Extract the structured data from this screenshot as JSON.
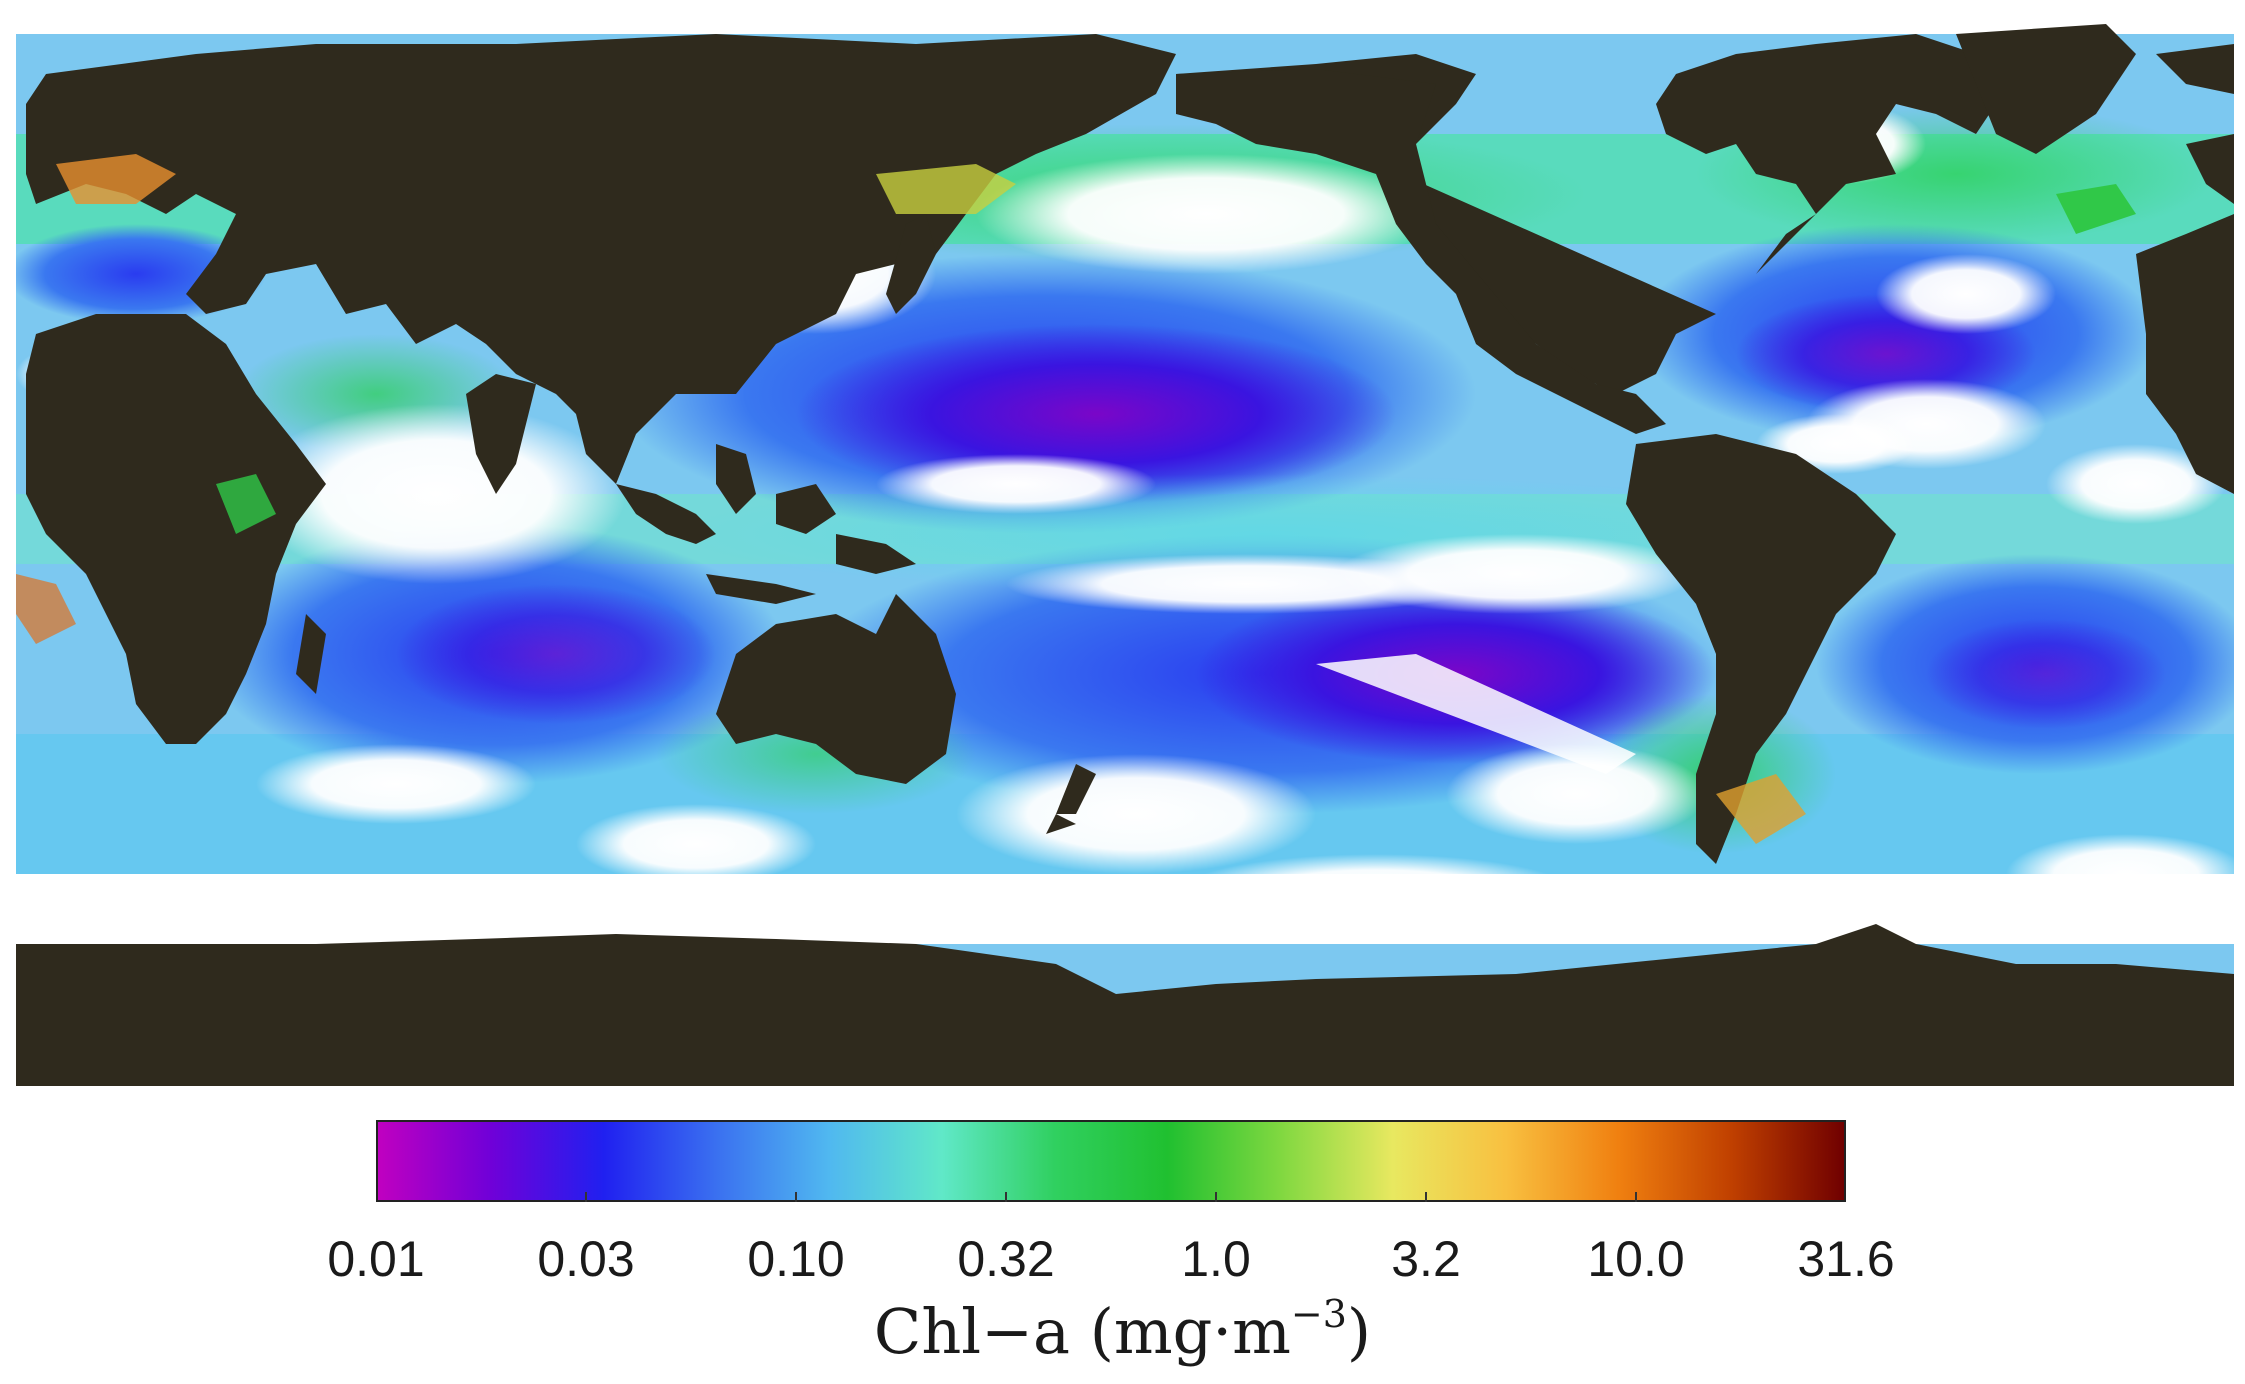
{
  "map": {
    "projection": "equirectangular",
    "center_longitude": 150,
    "land_color": "#2f2a1d",
    "no_data_color": "#ffffff",
    "variable": "Chl-a"
  },
  "colorbar": {
    "scale": "log",
    "range": [
      0.01,
      31.6
    ],
    "ticks": [
      "0.01",
      "0.03",
      "0.10",
      "0.32",
      "1.0",
      "3.2",
      "10.0",
      "31.6"
    ],
    "title_text": "Chl−a (mg·m",
    "title_exponent": "−3",
    "title_close": ")",
    "colormap_stops": [
      "#c000c0",
      "#7000d8",
      "#2020f0",
      "#3a70f0",
      "#50b8f0",
      "#60e8c8",
      "#30d060",
      "#20c030",
      "#80d840",
      "#e8e860",
      "#f8c040",
      "#f08010",
      "#c04000",
      "#700000"
    ]
  }
}
